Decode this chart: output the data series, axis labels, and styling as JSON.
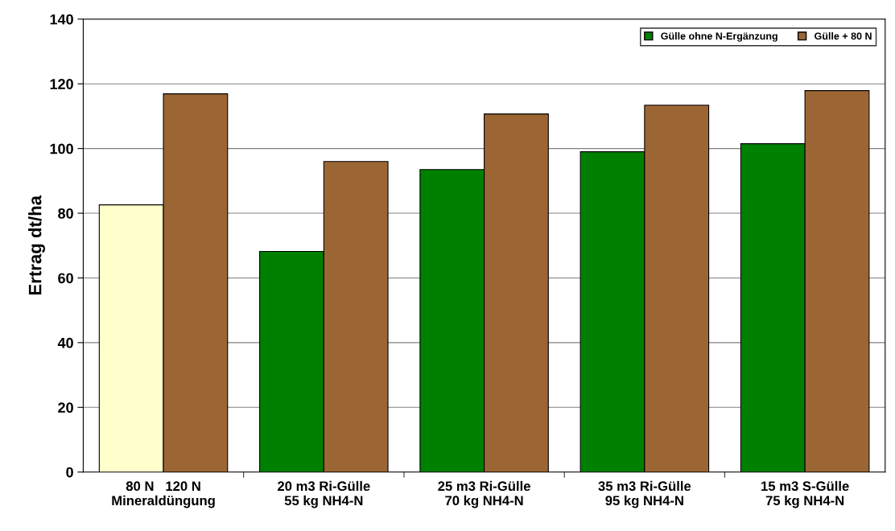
{
  "chart_data": {
    "type": "bar",
    "ylabel": "Ertrag dt/ha",
    "categories": [
      "80 N   120 N\nMineraldüngung",
      "20 m3 Ri-Gülle\n55 kg NH4-N",
      "25 m3 Ri-Gülle\n70 kg NH4-N",
      "35 m3 Ri-Gülle\n95 kg NH4-N",
      "15 m3 S-Gülle\n75 kg NH4-N"
    ],
    "series": [
      {
        "name": "Gülle ohne N-Ergänzung",
        "color": "#008000",
        "colors": [
          "#ffffcc",
          "#008000",
          "#008000",
          "#008000",
          "#008000"
        ],
        "values": [
          82.6,
          68.2,
          93.5,
          99.0,
          101.5
        ]
      },
      {
        "name": "Gülle + 80 N",
        "color": "#9c6634",
        "values": [
          116.9,
          96.0,
          110.7,
          113.4,
          117.9
        ]
      }
    ],
    "ylim": [
      0,
      140
    ],
    "yticks": [
      0,
      20,
      40,
      60,
      80,
      100,
      120,
      140
    ],
    "grid": "y",
    "legend": "top right"
  }
}
